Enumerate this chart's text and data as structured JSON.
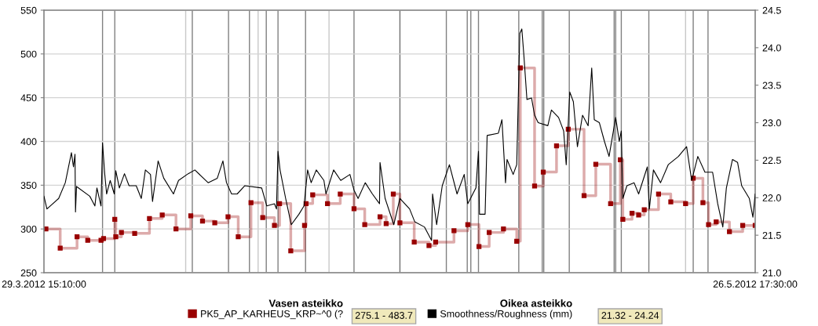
{
  "chart_data": {
    "type": "line",
    "grid": "y",
    "legend": "bottom",
    "xlim": [
      "2012-03-29T15:10",
      "2012-05-26T17:30"
    ],
    "xticks": [
      {
        "value": "2012-03-29T15:10",
        "label": "29.3.2012 15:10:00"
      },
      {
        "value": "2012-05-26T17:30",
        "label": "26.5.2012 17:30:00"
      }
    ],
    "ylim": [
      250,
      550
    ],
    "yticks": [
      250,
      300,
      350,
      400,
      450,
      500,
      550
    ],
    "y2lim": [
      21.0,
      24.5
    ],
    "y2ticks": [
      {
        "value": 21,
        "label": "21.0"
      },
      21.5,
      {
        "value": 22,
        "label": "22.0"
      },
      22.5,
      {
        "value": 23,
        "label": "23.0"
      },
      23.5,
      {
        "value": 24,
        "label": "24.0"
      },
      24.5
    ],
    "series": [
      {
        "name": "PK5_AP_KARHEUS_KRP~^0 (?",
        "type": "step",
        "color": "#990000",
        "marker": "square",
        "x": [
          "2012-03-29T19:00",
          "2012-03-30T23:00",
          "2012-04-01T08:00",
          "2012-04-02T05:00",
          "2012-04-03T07:00",
          "2012-04-03T12:00",
          "2012-04-04T10:00",
          "2012-04-04T12:00",
          "2012-04-04T23:00",
          "2012-04-06T01:00",
          "2012-04-07T06:00",
          "2012-04-08T07:00",
          "2012-04-09T10:00",
          "2012-04-10T15:00",
          "2012-04-11T14:00",
          "2012-04-12T14:00",
          "2012-04-13T16:00",
          "2012-04-14T12:00",
          "2012-04-15T13:00",
          "2012-04-16T12:00",
          "2012-04-17T11:00",
          "2012-04-17T21:00",
          "2012-04-18T19:00",
          "2012-04-19T22:00",
          "2012-04-20T01:00",
          "2012-04-20T14:00",
          "2012-04-21T19:00",
          "2012-04-22T20:00",
          "2012-04-23T23:00",
          "2012-04-24T20:00",
          "2012-04-26T02:00",
          "2012-04-26T14:00",
          "2012-04-27T04:00",
          "2012-04-27T17:00",
          "2012-04-28T21:00",
          "2012-04-30T02:00",
          "2012-04-30T15:00",
          "2012-05-02T03:00",
          "2012-05-03T06:00",
          "2012-05-04T04:00",
          "2012-05-05T00:00",
          "2012-05-06T04:00",
          "2012-05-07T06:00",
          "2012-05-07T13:00",
          "2012-05-08T17:00",
          "2012-05-09T10:00",
          "2012-05-10T12:00",
          "2012-05-11T11:00",
          "2012-05-12T18:00",
          "2012-05-13T17:00",
          "2012-05-14T22:00",
          "2012-05-15T17:00",
          "2012-05-15T22:00",
          "2012-05-16T16:00",
          "2012-05-17T05:00",
          "2012-05-17T16:00",
          "2012-05-18T20:00",
          "2012-05-19T20:00",
          "2012-05-21T01:00",
          "2012-05-21T16:00",
          "2012-05-22T11:00",
          "2012-05-22T22:00",
          "2012-05-23T13:00",
          "2012-05-24T15:00",
          "2012-05-25T17:00",
          "2012-05-26T17:30"
        ],
        "values": [
          300,
          278,
          291,
          287,
          287,
          289,
          311,
          291,
          296,
          295,
          312,
          316,
          300,
          315,
          309,
          307,
          314,
          291,
          330,
          313,
          304,
          329,
          275,
          304,
          329,
          339,
          329,
          340,
          323,
          305,
          314,
          306,
          340,
          307,
          285,
          281,
          285,
          298,
          305,
          280,
          296,
          300,
          286,
          484,
          349,
          365,
          395,
          414,
          338,
          374,
          329,
          379,
          311,
          318,
          316,
          322,
          340,
          331,
          329,
          358,
          330,
          305,
          308,
          297,
          304,
          304
        ]
      },
      {
        "name": "Smoothness/Roughness (mm)",
        "axis": "y2",
        "color": "#000000",
        "x": [
          "2012-03-29T15:10",
          "2012-03-29T21:00",
          "2012-03-30T20:00",
          "2012-03-31T09:00",
          "2012-03-31T21:00",
          "2012-04-01T01:00",
          "2012-04-01T04:00",
          "2012-04-01T05:00",
          "2012-04-01T07:00",
          "2012-04-02T09:00",
          "2012-04-02T19:00",
          "2012-04-02T23:00",
          "2012-04-03T07:00",
          "2012-04-03T10:00",
          "2012-04-03T14:00",
          "2012-04-03T18:00",
          "2012-04-04T01:00",
          "2012-04-04T09:00",
          "2012-04-04T12:00",
          "2012-04-04T19:00",
          "2012-04-05T05:00",
          "2012-04-05T14:00",
          "2012-04-06T04:00",
          "2012-04-06T14:00",
          "2012-04-06T22:00",
          "2012-04-07T08:00",
          "2012-04-07T12:00",
          "2012-04-07T23:00",
          "2012-04-08T10:00",
          "2012-04-09T05:00",
          "2012-04-09T15:00",
          "2012-04-10T10:00",
          "2012-04-10T23:00",
          "2012-04-12T01:00",
          "2012-04-12T19:00",
          "2012-04-13T06:00",
          "2012-04-13T13:00",
          "2012-04-13T23:00",
          "2012-04-14T10:00",
          "2012-04-15T01:00",
          "2012-04-16T10:00",
          "2012-04-16T20:00",
          "2012-04-17T11:00",
          "2012-04-17T15:00",
          "2012-04-17T18:00",
          "2012-04-17T22:00",
          "2012-04-18T09:00",
          "2012-04-18T20:00",
          "2012-04-19T11:00",
          "2012-04-19T21:00",
          "2012-04-20T04:00",
          "2012-04-20T11:00",
          "2012-04-20T21:00",
          "2012-04-21T12:00",
          "2012-04-21T16:00",
          "2012-04-22T07:00",
          "2012-04-22T21:00",
          "2012-04-23T15:00",
          "2012-04-23T23:00",
          "2012-04-24T07:00",
          "2012-04-24T21:00",
          "2012-04-25T11:00",
          "2012-04-26T01:00",
          "2012-04-26T02:00",
          "2012-04-26T12:00",
          "2012-04-27T05:00",
          "2012-04-27T17:00",
          "2012-04-28T12:00",
          "2012-04-28T22:00",
          "2012-04-29T17:00",
          "2012-04-30T07:00",
          "2012-04-30T09:00",
          "2012-04-30T17:00",
          "2012-05-01T04:00",
          "2012-05-01T18:00",
          "2012-05-02T09:00",
          "2012-05-02T23:00",
          "2012-05-03T06:00",
          "2012-05-03T22:00",
          "2012-05-04T03:00",
          "2012-05-04T05:00",
          "2012-05-04T16:00",
          "2012-05-04T20:00",
          "2012-05-05T18:00",
          "2012-05-06T01:00",
          "2012-05-06T08:00",
          "2012-05-06T11:00",
          "2012-05-06T23:00",
          "2012-05-07T06:00",
          "2012-05-07T12:00",
          "2012-05-07T16:00",
          "2012-05-07T20:00",
          "2012-05-08T02:00",
          "2012-05-08T11:00",
          "2012-05-08T17:00",
          "2012-05-09T00:00",
          "2012-05-09T19:00",
          "2012-05-10T02:00",
          "2012-05-10T16:00",
          "2012-05-11T02:00",
          "2012-05-11T07:00",
          "2012-05-11T14:00",
          "2012-05-11T21:00",
          "2012-05-12T05:00",
          "2012-05-12T15:00",
          "2012-05-13T02:00",
          "2012-05-13T09:00",
          "2012-05-13T14:00",
          "2012-05-14T00:00",
          "2012-05-14T10:00",
          "2012-05-14T19:00",
          "2012-05-15T08:00",
          "2012-05-15T15:00",
          "2012-05-15T19:00",
          "2012-05-15T22:00",
          "2012-05-16T06:00",
          "2012-05-16T20:00",
          "2012-05-17T05:00",
          "2012-05-17T22:00",
          "2012-05-18T02:00",
          "2012-05-18T10:00",
          "2012-05-19T00:00",
          "2012-05-19T15:00",
          "2012-05-20T11:00",
          "2012-05-21T03:00",
          "2012-05-21T13:00",
          "2012-05-22T01:00",
          "2012-05-22T15:00",
          "2012-05-23T06:00",
          "2012-05-23T16:00",
          "2012-05-24T02:00",
          "2012-05-24T09:00",
          "2012-05-24T21:00",
          "2012-05-25T07:00",
          "2012-05-25T15:00",
          "2012-05-26T06:00",
          "2012-05-26T13:00",
          "2012-05-26T17:30"
        ],
        "values": [
          22.02,
          21.85,
          21.99,
          22.2,
          22.6,
          22.41,
          22.58,
          21.81,
          22.15,
          22.02,
          21.89,
          22.13,
          21.89,
          22.73,
          22.34,
          22.05,
          22.23,
          22.05,
          22.36,
          22.13,
          22.32,
          22.16,
          22.16,
          21.99,
          22.37,
          22.31,
          21.95,
          22.49,
          22.26,
          22.05,
          22.23,
          22.32,
          22.37,
          22.2,
          22.26,
          22.49,
          22.2,
          22.05,
          22.05,
          22.16,
          22.13,
          21.89,
          21.92,
          21.85,
          22.62,
          22.37,
          21.99,
          21.64,
          21.78,
          21.89,
          22.37,
          22.2,
          22.37,
          22.23,
          22.05,
          22.37,
          22.23,
          22.31,
          22.1,
          21.99,
          22.2,
          22.05,
          21.92,
          22.47,
          21.99,
          21.64,
          21.99,
          21.85,
          21.68,
          21.61,
          21.43,
          22.05,
          21.64,
          22.16,
          22.44,
          22.05,
          22.31,
          21.92,
          22.13,
          22.62,
          21.78,
          21.78,
          22.83,
          22.86,
          23.04,
          22.2,
          22.51,
          22.31,
          22.44,
          24.19,
          24.25,
          23.9,
          23.31,
          23.33,
          23.1,
          23.0,
          22.96,
          23.17,
          23.07,
          22.89,
          22.44,
          23.41,
          23.28,
          22.68,
          23.1,
          22.96,
          23.73,
          23.04,
          23.0,
          22.75,
          22.55,
          23.07,
          22.75,
          22.89,
          21.99,
          22.16,
          22.2,
          22.05,
          22.41,
          21.85,
          22.37,
          22.2,
          22.44,
          22.55,
          22.68,
          22.23,
          22.55,
          22.34,
          22.34,
          21.92,
          21.61,
          22.13,
          22.51,
          22.47,
          22.16,
          21.99,
          21.74,
          22.05
        ]
      }
    ],
    "ref_lines": [
      {
        "axis": "x",
        "value": "2012-04-03T10:00",
        "color": "#808080"
      },
      {
        "axis": "x",
        "value": "2012-04-04T10:00",
        "color": "#808080"
      },
      {
        "axis": "x",
        "value": "2012-04-10T05:00",
        "color": "#c8c8c8"
      },
      {
        "axis": "x",
        "value": "2012-04-10T18:00",
        "color": "#808080"
      },
      {
        "axis": "x",
        "value": "2012-04-13T17:00",
        "color": "#808080"
      },
      {
        "axis": "x",
        "value": "2012-04-15T10:00",
        "color": "#808080"
      },
      {
        "axis": "x",
        "value": "2012-04-16T03:00",
        "color": "#c8c8c8"
      },
      {
        "axis": "x",
        "value": "2012-04-16T19:00",
        "color": "#808080"
      },
      {
        "axis": "x",
        "value": "2012-04-17T18:00",
        "color": "#808080"
      },
      {
        "axis": "x",
        "value": "2012-04-20T00:00",
        "color": "#808080"
      },
      {
        "axis": "x",
        "value": "2012-04-21T22:00",
        "color": "#c8c8c8"
      },
      {
        "axis": "x",
        "value": "2012-04-23T23:00",
        "color": "#808080"
      },
      {
        "axis": "x",
        "value": "2012-04-27T17:00",
        "color": "#707070"
      },
      {
        "axis": "x",
        "value": "2012-05-01T12:00",
        "color": "#808080"
      },
      {
        "axis": "x",
        "value": "2012-05-03T05:00",
        "color": "#808080"
      },
      {
        "axis": "x",
        "value": "2012-05-03T12:00",
        "color": "#808080"
      },
      {
        "axis": "x",
        "value": "2012-05-04T03:00",
        "color": "#808080"
      },
      {
        "axis": "x",
        "value": "2012-05-07T10:00",
        "color": "#808080"
      },
      {
        "axis": "x",
        "value": "2012-05-09T08:00",
        "color": "#808080"
      },
      {
        "axis": "x",
        "value": "2012-05-09T11:00",
        "color": "#808080"
      },
      {
        "axis": "x",
        "value": "2012-05-11T13:00",
        "color": "#808080"
      },
      {
        "axis": "x",
        "value": "2012-05-15T05:00",
        "color": "#808080"
      },
      {
        "axis": "x",
        "value": "2012-05-15T08:00",
        "color": "#808080"
      },
      {
        "axis": "x",
        "value": "2012-05-15T19:00",
        "color": "#808080"
      },
      {
        "axis": "x",
        "value": "2012-05-18T01:00",
        "color": "#808080"
      },
      {
        "axis": "x",
        "value": "2012-05-21T01:00",
        "color": "#c8c8c8"
      },
      {
        "axis": "x",
        "value": "2012-05-21T16:00",
        "color": "#808080"
      },
      {
        "axis": "x",
        "value": "2012-05-22T21:00",
        "color": "#808080"
      }
    ],
    "annotations": [
      "Vasen asteikko",
      "275.1 - 483.7",
      "Oikea asteikko",
      "21.32 - 24.24"
    ]
  }
}
